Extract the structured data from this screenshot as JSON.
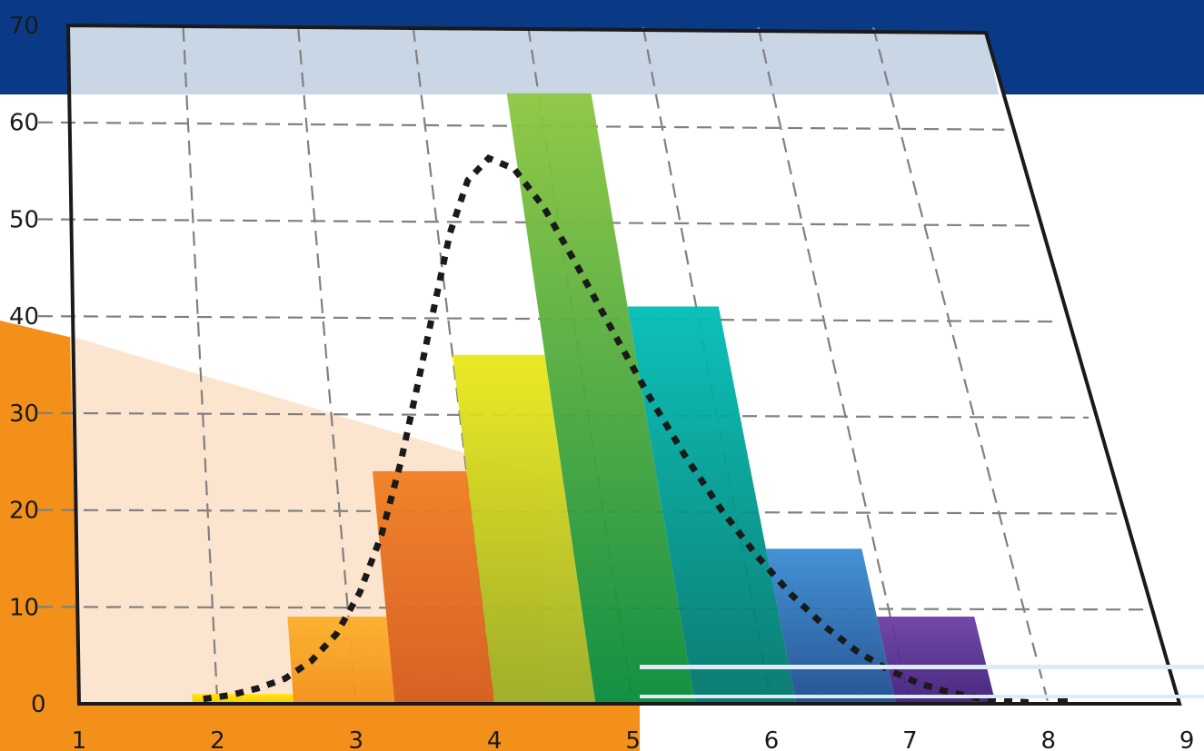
{
  "chart_data": {
    "type": "bar",
    "categories": [
      "2",
      "3",
      "4",
      "5",
      "6",
      "7"
    ],
    "bars": [
      {
        "value": 1,
        "colors": [
          "#FFE600",
          "#F5C400"
        ]
      },
      {
        "value": 9,
        "colors": [
          "#FBB02A",
          "#F39019"
        ]
      },
      {
        "value": 24,
        "colors": [
          "#F07E22",
          "#D55A1B"
        ]
      },
      {
        "value": 36,
        "colors": [
          "#EAE81A",
          "#9BAB22"
        ]
      },
      {
        "value": 63,
        "colors": [
          "#8DC63F",
          "#078A3A"
        ]
      },
      {
        "value": 41,
        "colors": [
          "#00BDB6",
          "#00756A"
        ]
      },
      {
        "value": 16,
        "colors": [
          "#3A8DD2",
          "#1C4B8E"
        ]
      },
      {
        "value": 9,
        "colors": [
          "#6B3FA6",
          "#3E1D78"
        ]
      }
    ],
    "curve": [
      [
        1.9,
        0.5
      ],
      [
        2.1,
        0.9
      ],
      [
        2.3,
        1.6
      ],
      [
        2.5,
        2.6
      ],
      [
        2.7,
        4.4
      ],
      [
        2.9,
        7.2
      ],
      [
        3.1,
        11.5
      ],
      [
        3.3,
        17.4
      ],
      [
        3.5,
        24.8
      ],
      [
        3.7,
        33.0
      ],
      [
        3.9,
        41.0
      ],
      [
        4.1,
        48.6
      ],
      [
        4.3,
        54.0
      ],
      [
        4.5,
        56.3
      ],
      [
        4.7,
        55.2
      ],
      [
        4.9,
        51.2
      ],
      [
        5.1,
        45.1
      ],
      [
        5.3,
        38.4
      ],
      [
        5.5,
        31.7
      ],
      [
        5.7,
        25.5
      ],
      [
        5.9,
        20.0
      ],
      [
        6.1,
        15.3
      ],
      [
        6.3,
        11.3
      ],
      [
        6.5,
        8.0
      ],
      [
        6.7,
        5.4
      ],
      [
        6.9,
        3.5
      ],
      [
        7.1,
        2.1
      ],
      [
        7.3,
        1.2
      ],
      [
        7.5,
        0.6
      ],
      [
        7.7,
        0.3
      ],
      [
        7.9,
        0.1
      ]
    ],
    "curve_style": "dotted",
    "xlim": [
      1,
      9
    ],
    "ylim": [
      0,
      70
    ],
    "x_ticks": [
      "1",
      "2",
      "3",
      "4",
      "5",
      "6",
      "7",
      "8",
      "9"
    ],
    "y_ticks": [
      "0",
      "10",
      "20",
      "30",
      "40",
      "50",
      "60",
      "70"
    ],
    "grid": true,
    "perspective": "skewed"
  },
  "colors": {
    "band_blue": "#0A3A86",
    "band_light_blue": "#C9D6E6",
    "orange": "#F39019",
    "peach": "#FCE5CF",
    "frame": "#1a1a1a",
    "grid": "#808080"
  }
}
